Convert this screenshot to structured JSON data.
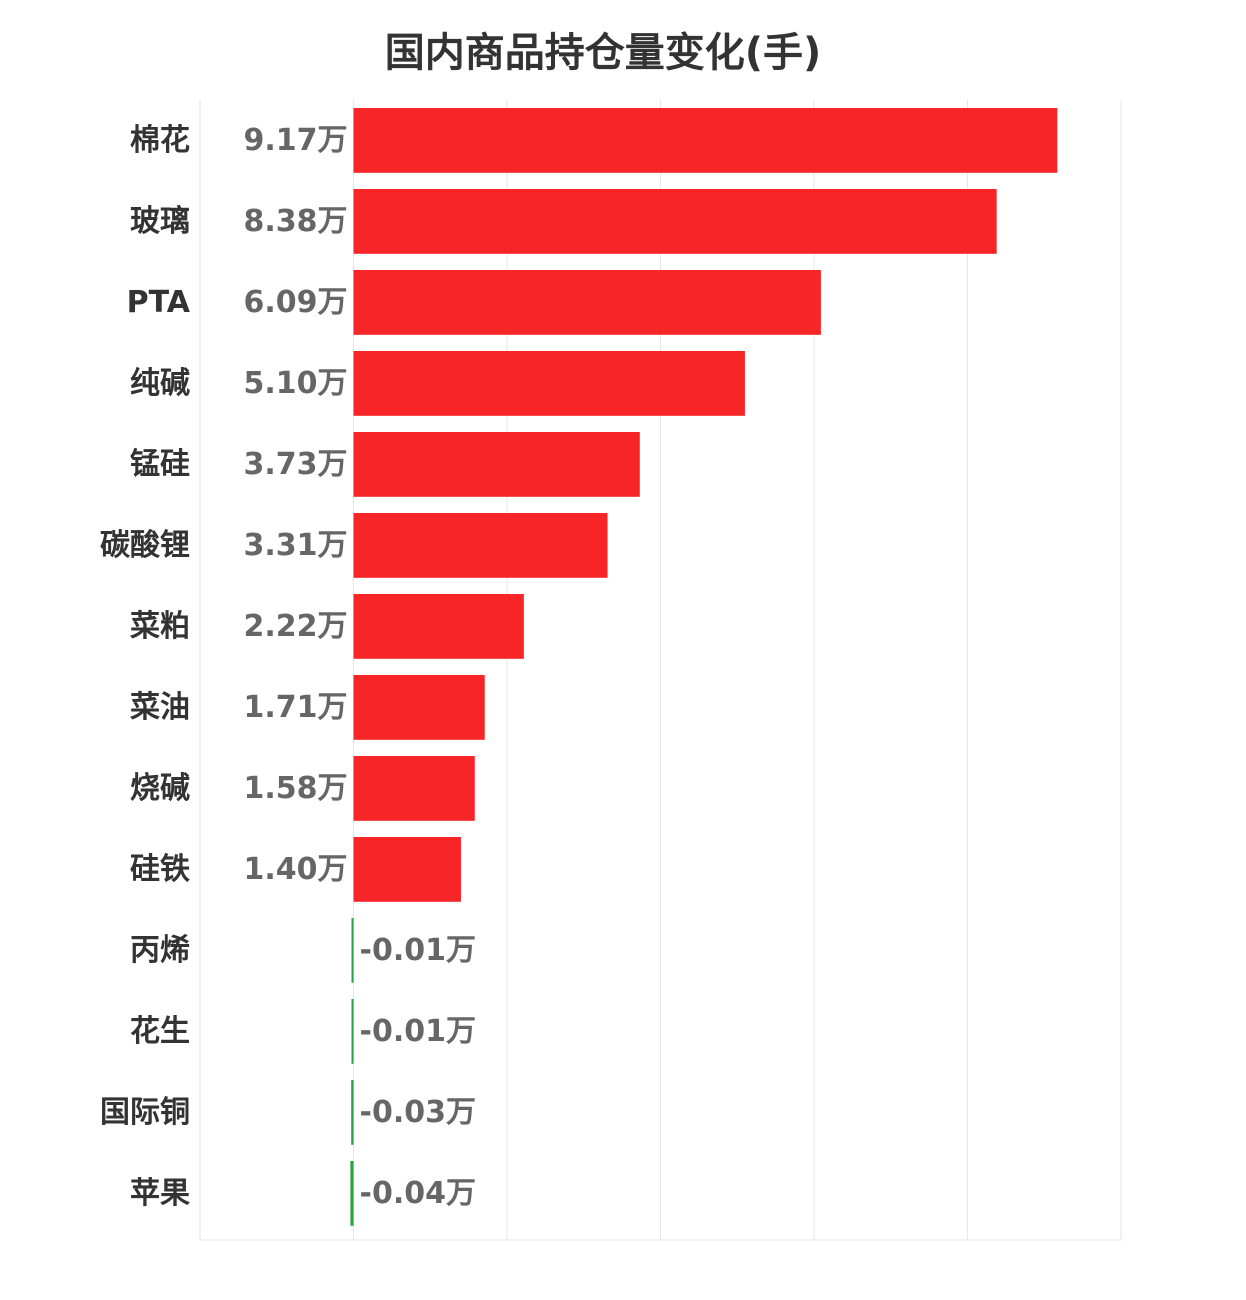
{
  "chart_data": {
    "type": "bar",
    "orientation": "horizontal",
    "title": "国内商品持仓量变化(手)",
    "unit": "万",
    "categories": [
      "棉花",
      "玻璃",
      "PTA",
      "纯碱",
      "锰硅",
      "碳酸锂",
      "菜粕",
      "菜油",
      "烧碱",
      "硅铁",
      "丙烯",
      "花生",
      "国际铜",
      "苹果"
    ],
    "values": [
      9.17,
      8.38,
      6.09,
      5.1,
      3.73,
      3.31,
      2.22,
      1.71,
      1.58,
      1.4,
      -0.01,
      -0.01,
      -0.03,
      -0.04
    ],
    "value_labels": [
      "9.17万",
      "8.38万",
      "6.09万",
      "5.10万",
      "3.73万",
      "3.31万",
      "2.22万",
      "1.71万",
      "1.58万",
      "1.40万",
      "-0.01万",
      "-0.01万",
      "-0.03万",
      "-0.04万"
    ],
    "xlim": [
      -2,
      10
    ],
    "grid": true,
    "colors": {
      "positive": "#f72527",
      "negative": "#22a53a",
      "grid": "#e6e6e6"
    }
  }
}
